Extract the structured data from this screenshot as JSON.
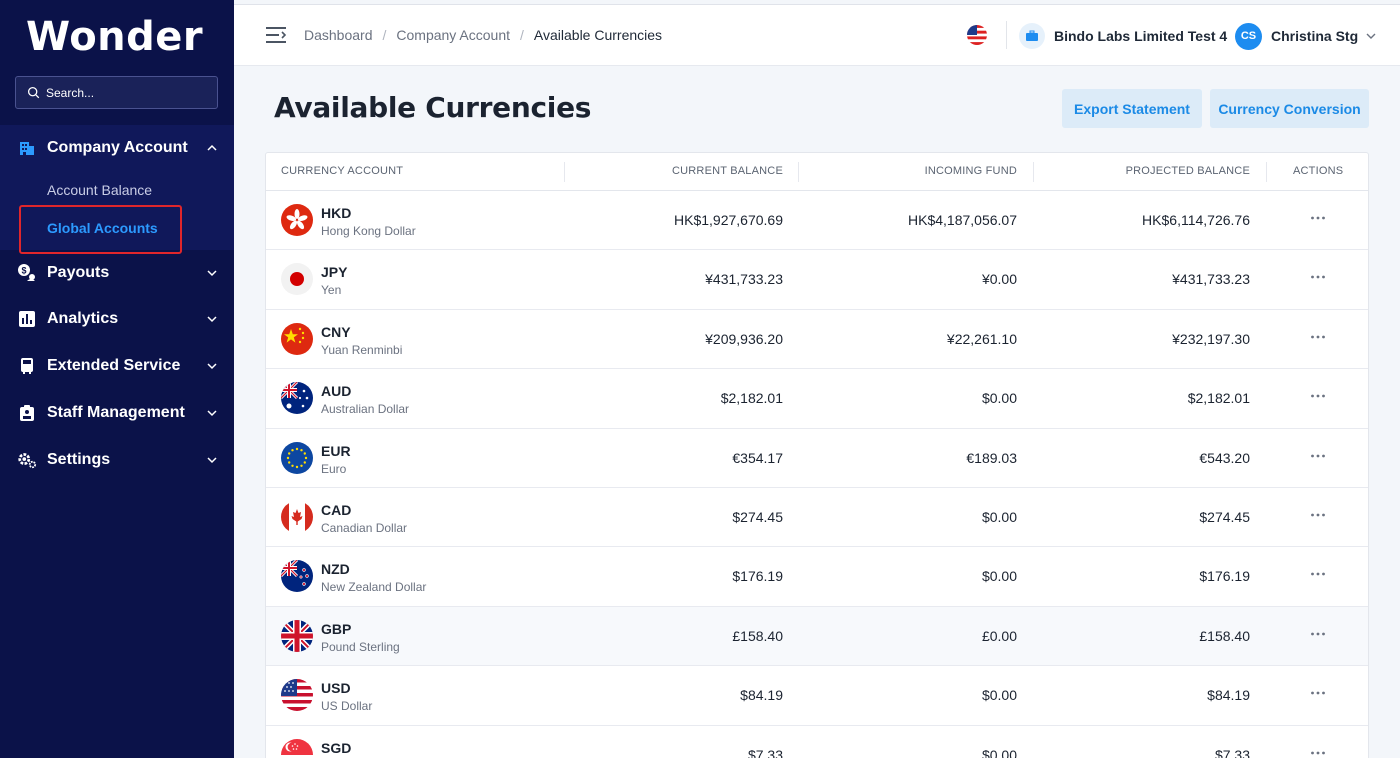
{
  "brand": {
    "logo": "Wonder"
  },
  "search": {
    "placeholder": "Search..."
  },
  "sidebar": {
    "company_account": {
      "label": "Company Account",
      "items": [
        {
          "label": "Account Balance"
        },
        {
          "label": "Global Accounts"
        }
      ]
    },
    "sections": [
      {
        "label": "Payouts",
        "icon": "payouts-icon"
      },
      {
        "label": "Analytics",
        "icon": "analytics-icon"
      },
      {
        "label": "Extended Service",
        "icon": "extended-service-icon"
      },
      {
        "label": "Staff Management",
        "icon": "staff-icon"
      },
      {
        "label": "Settings",
        "icon": "settings-icon"
      }
    ]
  },
  "header": {
    "breadcrumb": [
      "Dashboard",
      "Company Account",
      "Available Currencies"
    ],
    "company_name": "Bindo Labs Limited Test 4",
    "user_initials": "CS",
    "user_name": "Christina Stg"
  },
  "page": {
    "title": "Available Currencies",
    "export_label": "Export Statement",
    "conversion_label": "Currency Conversion"
  },
  "table": {
    "columns": [
      "CURRENCY ACCOUNT",
      "CURRENT BALANCE",
      "INCOMING FUND",
      "PROJECTED BALANCE",
      "ACTIONS"
    ],
    "rows": [
      {
        "code": "HKD",
        "name": "Hong Kong Dollar",
        "current": "HK$1,927,670.69",
        "incoming": "HK$4,187,056.07",
        "projected": "HK$6,114,726.76"
      },
      {
        "code": "JPY",
        "name": "Yen",
        "current": "¥431,733.23",
        "incoming": "¥0.00",
        "projected": "¥431,733.23"
      },
      {
        "code": "CNY",
        "name": "Yuan Renminbi",
        "current": "¥209,936.20",
        "incoming": "¥22,261.10",
        "projected": "¥232,197.30"
      },
      {
        "code": "AUD",
        "name": "Australian Dollar",
        "current": "$2,182.01",
        "incoming": "$0.00",
        "projected": "$2,182.01"
      },
      {
        "code": "EUR",
        "name": "Euro",
        "current": "€354.17",
        "incoming": "€189.03",
        "projected": "€543.20"
      },
      {
        "code": "CAD",
        "name": "Canadian Dollar",
        "current": "$274.45",
        "incoming": "$0.00",
        "projected": "$274.45"
      },
      {
        "code": "NZD",
        "name": "New Zealand Dollar",
        "current": "$176.19",
        "incoming": "$0.00",
        "projected": "$176.19"
      },
      {
        "code": "GBP",
        "name": "Pound Sterling",
        "current": "£158.40",
        "incoming": "£0.00",
        "projected": "£158.40"
      },
      {
        "code": "USD",
        "name": "US Dollar",
        "current": "$84.19",
        "incoming": "$0.00",
        "projected": "$84.19"
      },
      {
        "code": "SGD",
        "name": "",
        "current": "$7.33",
        "incoming": "$0.00",
        "projected": "$7.33"
      }
    ]
  },
  "colors": {
    "sidebar_bg": "#0b1249",
    "accent": "#1b8ae6",
    "button_bg": "#dcebf8",
    "highlight": "#e0262b"
  }
}
